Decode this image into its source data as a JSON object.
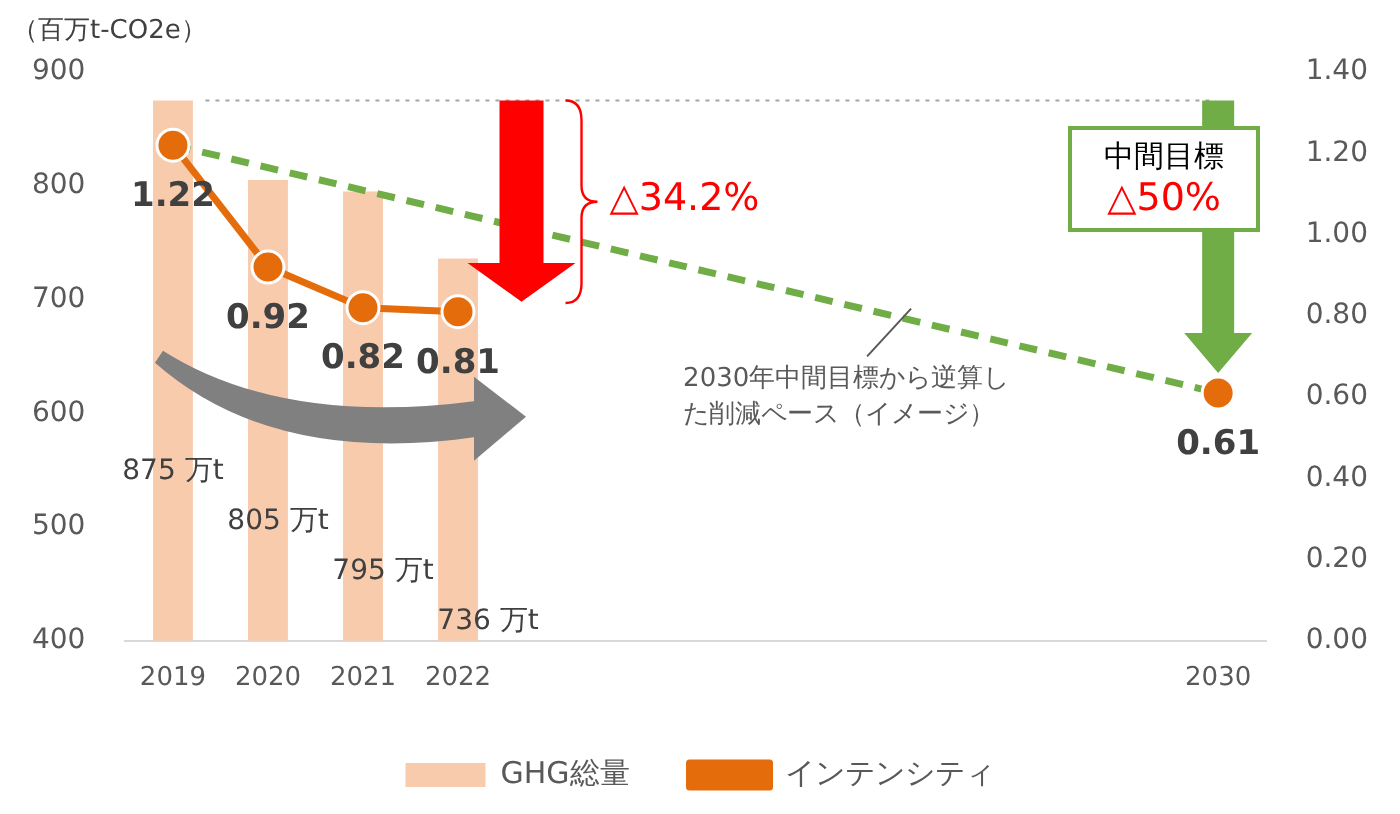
{
  "chart_data": {
    "type": "bar",
    "ylabel": "（百万t-CO2e）",
    "categories": [
      "2019",
      "2020",
      "2021",
      "2022",
      null,
      null,
      null,
      null,
      null,
      null,
      null,
      "2030"
    ],
    "series": [
      {
        "name": "GHG総量",
        "color": "#f8cbad",
        "values": [
          875,
          805,
          795,
          736,
          null,
          null,
          null,
          null,
          null,
          null,
          null,
          null
        ],
        "value_labels": [
          "875 万t",
          "805 万t",
          "795 万t",
          "736 万t",
          null,
          null,
          null,
          null,
          null,
          null,
          null,
          null
        ]
      },
      {
        "name": "インテンシティ",
        "type": "line",
        "axis": "y2",
        "color": "#e46c0a",
        "marker": "circle",
        "values": [
          1.22,
          0.92,
          0.82,
          0.81,
          null,
          null,
          null,
          null,
          null,
          null,
          null,
          0.61
        ],
        "value_labels": [
          "1.22",
          "0.92",
          "0.82",
          "0.81",
          null,
          null,
          null,
          null,
          null,
          null,
          null,
          "0.61"
        ]
      },
      {
        "type": "line",
        "axis": "y2",
        "color": "#70ad47",
        "line_style": "dashed",
        "marker": "none",
        "values": [
          1.22,
          null,
          null,
          null,
          null,
          null,
          null,
          null,
          null,
          null,
          null,
          0.61
        ]
      }
    ],
    "ylim": [
      400,
      900
    ],
    "yticks": [
      400,
      500,
      600,
      700,
      800,
      900
    ],
    "y2lim": [
      0,
      1.4
    ],
    "y2ticks": [
      {
        "value": 0,
        "label": "0.00"
      },
      {
        "value": 0.2,
        "label": "0.20"
      },
      {
        "value": 0.4,
        "label": "0.40"
      },
      {
        "value": 0.6,
        "label": "0.60"
      },
      {
        "value": 0.8,
        "label": "0.80"
      },
      {
        "value": 1,
        "label": "1.00"
      },
      {
        "value": 1.2,
        "label": "1.20"
      },
      {
        "value": 1.4,
        "label": "1.40"
      }
    ],
    "ref_lines": [
      {
        "axis": "y",
        "value": 875,
        "color": "#a6a6a6",
        "line_style": "dotted"
      }
    ],
    "annotations": [
      "△34.2%",
      "中間目標",
      "△50%",
      "2030年中間目標から逆算した削減ペース（イメージ）"
    ],
    "grid": false,
    "legend": "bottom"
  }
}
